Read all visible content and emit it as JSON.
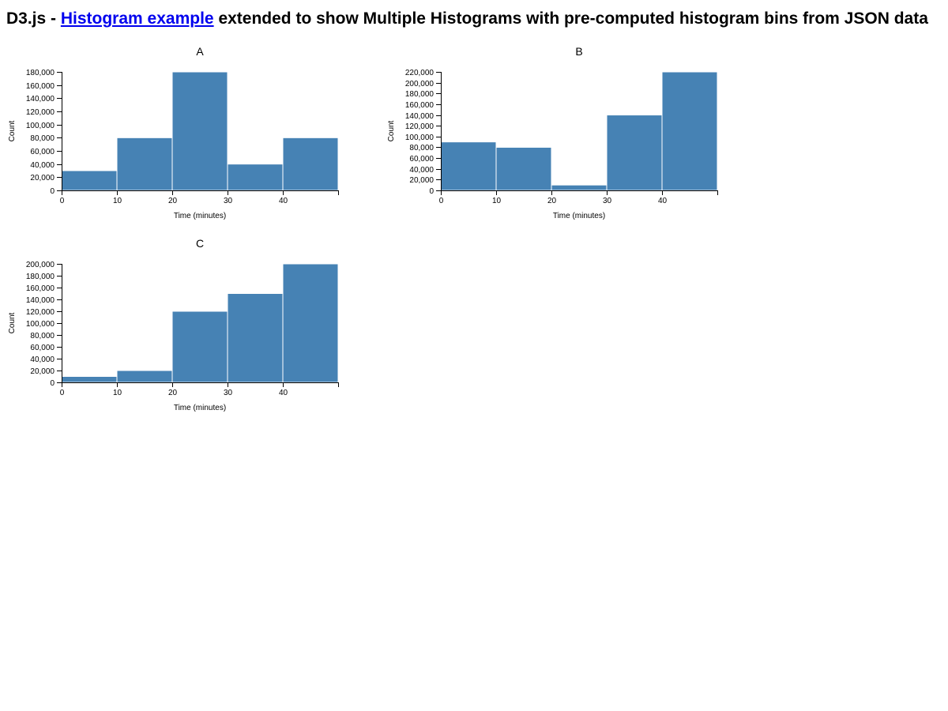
{
  "header": {
    "prefix": "D3.js - ",
    "link_text": "Histogram example",
    "suffix": " extended to show Multiple Histograms with pre-computed histogram bins from JSON data"
  },
  "colors": {
    "bar": "#4682b4",
    "link": "#0000ee"
  },
  "chart_data": [
    {
      "type": "bar",
      "title": "A",
      "xlabel": "Time (minutes)",
      "ylabel": "Count",
      "bins": [
        [
          0,
          10
        ],
        [
          10,
          20
        ],
        [
          20,
          30
        ],
        [
          30,
          40
        ],
        [
          40,
          50
        ]
      ],
      "x_ticks": [
        0,
        10,
        20,
        30,
        40
      ],
      "values": [
        30000,
        80000,
        180000,
        40000,
        80000
      ],
      "ylim": [
        0,
        180000
      ],
      "y_ticks": [
        0,
        20000,
        40000,
        60000,
        80000,
        100000,
        120000,
        140000,
        160000,
        180000
      ]
    },
    {
      "type": "bar",
      "title": "B",
      "xlabel": "Time (minutes)",
      "ylabel": "Count",
      "bins": [
        [
          0,
          10
        ],
        [
          10,
          20
        ],
        [
          20,
          30
        ],
        [
          30,
          40
        ],
        [
          40,
          50
        ]
      ],
      "x_ticks": [
        0,
        10,
        20,
        30,
        40
      ],
      "values": [
        90000,
        80000,
        10000,
        140000,
        220000
      ],
      "ylim": [
        0,
        220000
      ],
      "y_ticks": [
        0,
        20000,
        40000,
        60000,
        80000,
        100000,
        120000,
        140000,
        160000,
        180000,
        200000,
        220000
      ]
    },
    {
      "type": "bar",
      "title": "C",
      "xlabel": "Time (minutes)",
      "ylabel": "Count",
      "bins": [
        [
          0,
          10
        ],
        [
          10,
          20
        ],
        [
          20,
          30
        ],
        [
          30,
          40
        ],
        [
          40,
          50
        ]
      ],
      "x_ticks": [
        0,
        10,
        20,
        30,
        40
      ],
      "values": [
        10000,
        20000,
        120000,
        150000,
        200000
      ],
      "ylim": [
        0,
        200000
      ],
      "y_ticks": [
        0,
        20000,
        40000,
        60000,
        80000,
        100000,
        120000,
        140000,
        160000,
        180000,
        200000
      ]
    }
  ]
}
